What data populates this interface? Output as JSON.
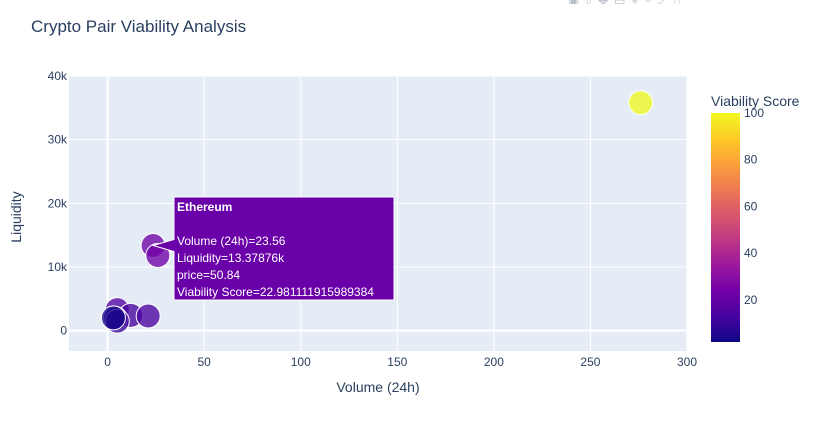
{
  "chart_data": {
    "type": "scatter",
    "title": "Crypto Pair Viability Analysis",
    "xlabel": "Volume (24h)",
    "ylabel": "Liquidity",
    "xlim": [
      -20,
      300
    ],
    "ylim": [
      -3200,
      40000
    ],
    "x_ticks": [
      0,
      50,
      100,
      150,
      200,
      250,
      300
    ],
    "x_tick_labels": [
      "0",
      "50",
      "100",
      "150",
      "200",
      "250",
      "300"
    ],
    "y_ticks": [
      0,
      10000,
      20000,
      30000,
      40000
    ],
    "y_tick_labels": [
      "0",
      "10k",
      "20k",
      "30k",
      "40k"
    ],
    "colorbar": {
      "title": "Viability Score",
      "range": [
        2,
        100
      ],
      "ticks": [
        20,
        40,
        60,
        80,
        100
      ],
      "tick_labels": [
        "20",
        "40",
        "60",
        "80",
        "100"
      ]
    },
    "points": [
      {
        "x": 276,
        "y": 35800,
        "score": 100
      },
      {
        "x": 23.56,
        "y": 13378.76,
        "score": 22.98
      },
      {
        "x": 26,
        "y": 11800,
        "score": 23
      },
      {
        "x": 5,
        "y": 3300,
        "score": 16
      },
      {
        "x": 12,
        "y": 2400,
        "score": 13
      },
      {
        "x": 21,
        "y": 2300,
        "score": 14
      },
      {
        "x": 4,
        "y": 1900,
        "score": 6
      },
      {
        "x": 5,
        "y": 1500,
        "score": 10
      },
      {
        "x": 3,
        "y": 2000,
        "score": 4
      }
    ],
    "tooltip": {
      "name": "Ethereum",
      "lines": [
        "Volume (24h)=23.56",
        "Liquidity=13.37876k",
        "price=50.84",
        "Viability Score=22.981111915989384"
      ],
      "color": "#6a00a8"
    }
  },
  "modebar_icons": [
    "camera-icon",
    "zoom-icon",
    "pan-icon",
    "box-select-icon",
    "lasso-icon",
    "zoom-in-icon",
    "zoom-out-icon",
    "autoscale-icon",
    "reset-icon",
    "plotly-logo-icon"
  ]
}
